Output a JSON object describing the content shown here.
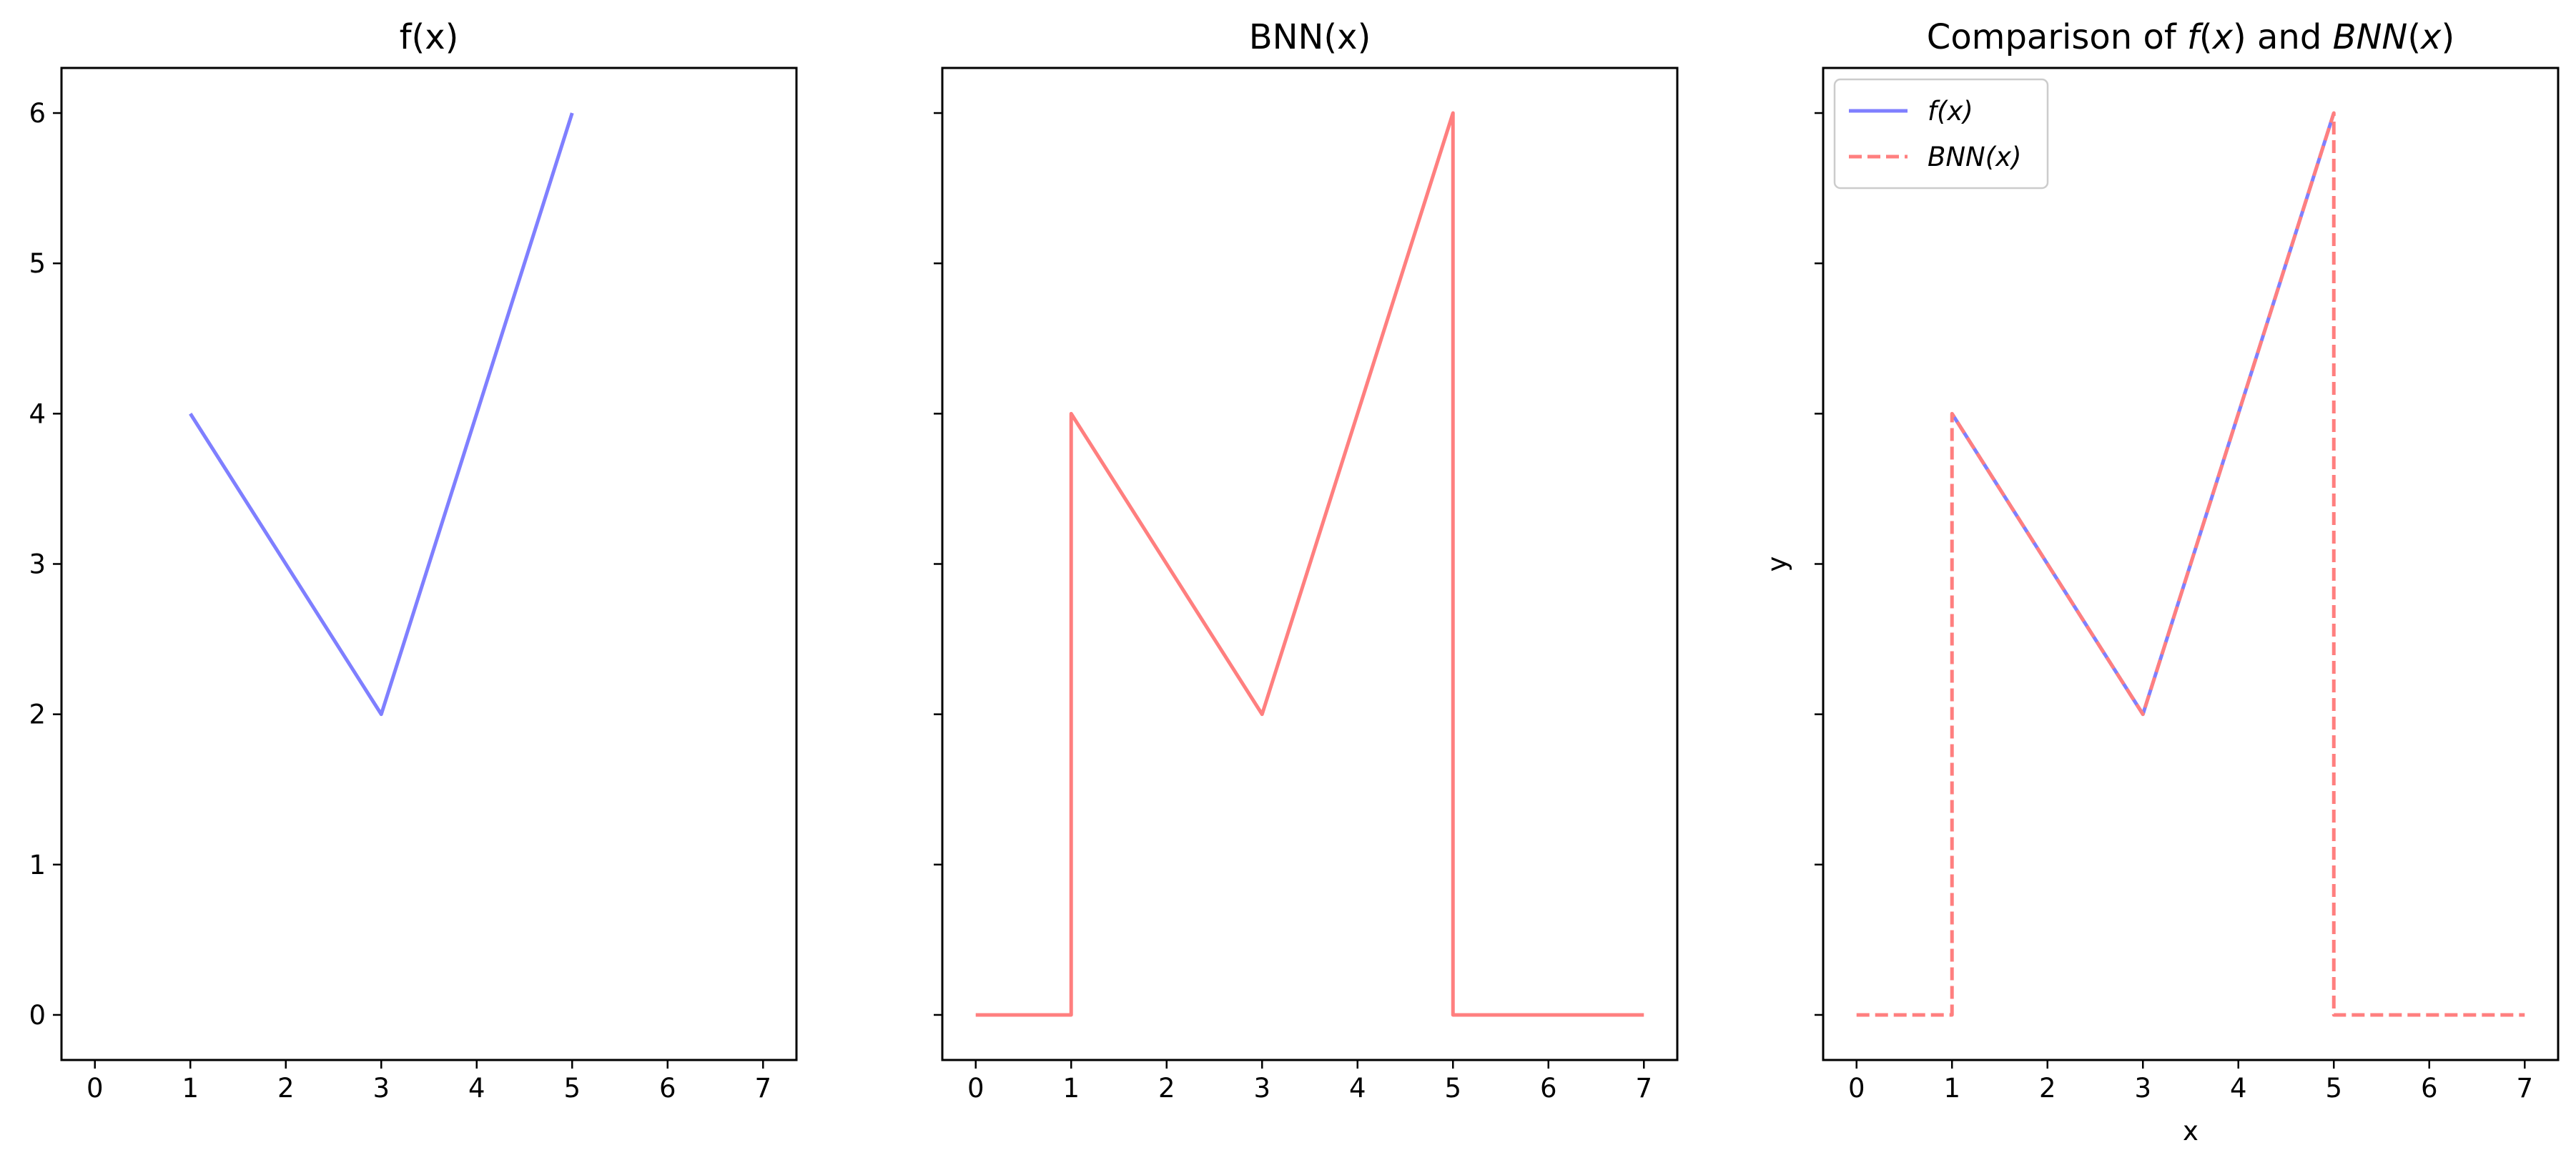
{
  "chart_data": [
    {
      "type": "line",
      "title": "f(x)",
      "xlabel": "",
      "ylabel": "",
      "xlim": [
        -0.35,
        7.35
      ],
      "ylim": [
        -0.3,
        6.3
      ],
      "xticks": [
        0,
        1,
        2,
        3,
        4,
        5,
        6,
        7
      ],
      "yticks": [
        0,
        1,
        2,
        3,
        4,
        5,
        6
      ],
      "show_y_tick_labels": true,
      "grid": false,
      "series": [
        {
          "x": [
            1,
            3,
            5
          ],
          "y": [
            4,
            2,
            6
          ],
          "color": "#7f7fff",
          "dash": "solid"
        }
      ]
    },
    {
      "type": "line",
      "title": "BNN(x)",
      "xlabel": "",
      "ylabel": "",
      "xlim": [
        -0.35,
        7.35
      ],
      "ylim": [
        -0.3,
        6.3
      ],
      "xticks": [
        0,
        1,
        2,
        3,
        4,
        5,
        6,
        7
      ],
      "yticks": [
        0,
        1,
        2,
        3,
        4,
        5,
        6
      ],
      "show_y_tick_labels": false,
      "grid": false,
      "series": [
        {
          "x": [
            0,
            1,
            1,
            3,
            5,
            5,
            7
          ],
          "y": [
            0,
            0,
            4,
            2,
            6,
            0,
            0
          ],
          "color": "#ff7f7f",
          "dash": "solid"
        }
      ]
    },
    {
      "type": "line",
      "title": "Comparison of f(x) and BNN(x)",
      "title_parts": [
        {
          "text": "Comparison of ",
          "italic": false
        },
        {
          "text": "f",
          "italic": true
        },
        {
          "text": "(",
          "italic": false
        },
        {
          "text": "x",
          "italic": true
        },
        {
          "text": ") and ",
          "italic": false
        },
        {
          "text": "BNN",
          "italic": true
        },
        {
          "text": "(",
          "italic": false
        },
        {
          "text": "x",
          "italic": true
        },
        {
          "text": ")",
          "italic": false
        }
      ],
      "xlabel": "x",
      "ylabel": "y",
      "xlim": [
        -0.35,
        7.35
      ],
      "ylim": [
        -0.3,
        6.3
      ],
      "xticks": [
        0,
        1,
        2,
        3,
        4,
        5,
        6,
        7
      ],
      "yticks": [
        0,
        1,
        2,
        3,
        4,
        5,
        6
      ],
      "show_y_tick_labels": false,
      "grid": false,
      "legend": "top-left",
      "series": [
        {
          "name": "f(x)",
          "x": [
            1,
            3,
            5
          ],
          "y": [
            4,
            2,
            6
          ],
          "color": "#7f7fff",
          "dash": "solid"
        },
        {
          "name": "BNN(x)",
          "x": [
            0,
            1,
            1,
            3,
            5,
            5,
            7
          ],
          "y": [
            0,
            0,
            4,
            2,
            6,
            0,
            0
          ],
          "color": "#ff7f7f",
          "dash": "dashed"
        }
      ]
    }
  ]
}
